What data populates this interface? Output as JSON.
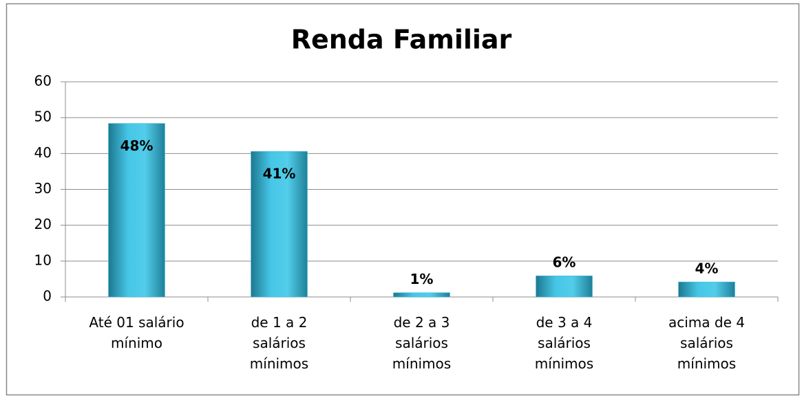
{
  "chart_data": {
    "type": "bar",
    "title": "Renda Familiar",
    "categories": [
      "Até 01 salário mínimo",
      "de 1 a 2 salários mínimos",
      "de 2 a 3 salários mínimos",
      "de 3 a 4 salários mínimos",
      "acima de 4 salários mínimos"
    ],
    "values": [
      48.4,
      40.6,
      1.2,
      5.9,
      4.2
    ],
    "value_labels": [
      "48%",
      "41%",
      "1%",
      "6%",
      "4%"
    ],
    "color": "#3fbfe0",
    "ylim": [
      0,
      60
    ],
    "yticks": [
      0,
      10,
      20,
      30,
      40,
      50,
      60
    ],
    "grid": true
  }
}
